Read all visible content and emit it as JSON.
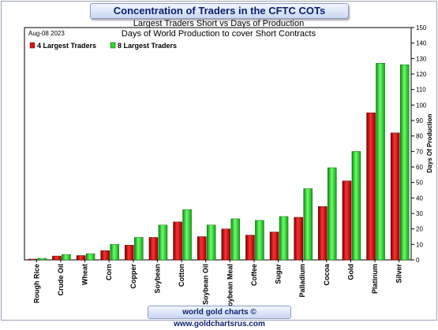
{
  "header": {
    "title": "Concentration of Traders in the CFTC COTs"
  },
  "footer": {
    "credit": "world gold charts © www.goldchartsrus.com"
  },
  "chart_data": {
    "type": "bar",
    "title": "Largest Traders Short vs Days of Production",
    "subtitle": "Days of World Production to cover Short Contracts",
    "date": "Aug-08  2023",
    "ylabel": "Days Of Production",
    "xlabel": "",
    "ylim": [
      0,
      150
    ],
    "yticks": [
      0,
      10,
      20,
      30,
      40,
      50,
      60,
      70,
      80,
      90,
      100,
      110,
      120,
      130,
      140,
      150
    ],
    "y_axis_side": "right",
    "grid": false,
    "legend_position": "top-left",
    "categories": [
      "Rough Rice",
      "Crude Oil",
      "Wheat",
      "Corn",
      "Copper",
      "Soybean",
      "Cotton",
      "Soybean Oil",
      "Soybean Meal",
      "Coffee",
      "Sugar",
      "Palladium",
      "Cocoa",
      "Gold",
      "Platinum",
      "Silver"
    ],
    "series": [
      {
        "name": "4 Largest Traders",
        "color": "#e01010",
        "values": [
          0.5,
          2.5,
          2.8,
          6,
          9.5,
          14.5,
          24.5,
          15,
          20,
          16,
          18,
          27.5,
          34.5,
          51,
          95,
          82
        ]
      },
      {
        "name": "8 Largest Traders",
        "color": "#22e022",
        "values": [
          1,
          3.5,
          4,
          10,
          14.5,
          22.5,
          32.5,
          22.5,
          26.5,
          25.5,
          28,
          46,
          59.5,
          70,
          127,
          126
        ]
      }
    ]
  }
}
